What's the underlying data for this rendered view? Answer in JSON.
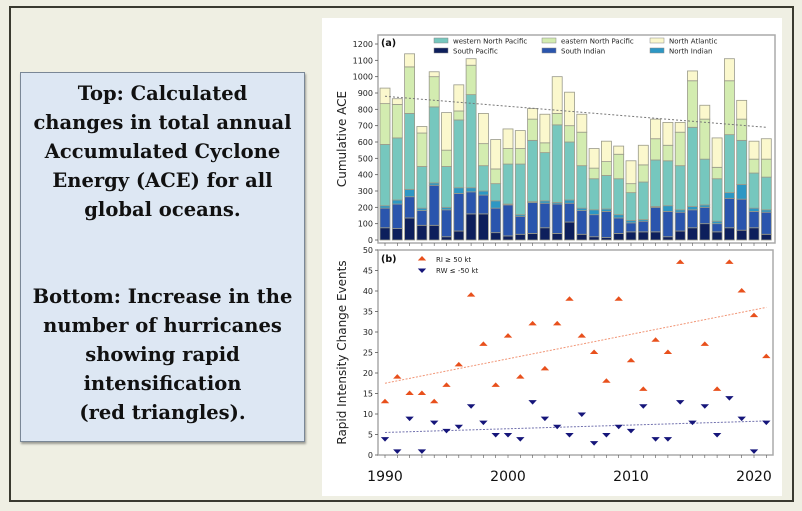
{
  "caption": {
    "top_lines": [
      "Top: Calculated",
      "changes in total annual",
      "Accumulated Cyclone",
      "Energy (ACE) for all",
      "global oceans."
    ],
    "bottom_lines": [
      "Bottom: Increase in the",
      "number of hurricanes",
      "showing rapid",
      "intensification",
      "(red triangles)."
    ]
  },
  "chart_data": [
    {
      "type": "bar",
      "stacked": true,
      "panel_label": "(a)",
      "title": "",
      "xlabel": "",
      "ylabel": "Cumulative ACE",
      "ylim": [
        0,
        1250
      ],
      "yticks": [
        0,
        100,
        200,
        300,
        400,
        500,
        600,
        700,
        800,
        900,
        1000,
        1100,
        1200
      ],
      "grid": false,
      "legend_position": "top",
      "categories": [
        1990,
        1991,
        1992,
        1993,
        1994,
        1995,
        1996,
        1997,
        1998,
        1999,
        2000,
        2001,
        2002,
        2003,
        2004,
        2005,
        2006,
        2007,
        2008,
        2009,
        2010,
        2011,
        2012,
        2013,
        2014,
        2015,
        2016,
        2017,
        2018,
        2019,
        2020,
        2021
      ],
      "series": [
        {
          "name": "South Pacific",
          "color": "#0d1f5c",
          "values": [
            75,
            70,
            135,
            90,
            90,
            20,
            55,
            160,
            160,
            45,
            25,
            35,
            40,
            75,
            40,
            110,
            35,
            20,
            15,
            40,
            50,
            50,
            50,
            20,
            55,
            75,
            100,
            50,
            75,
            60,
            75,
            35
          ]
        },
        {
          "name": "South Indian",
          "color": "#2a55ad",
          "values": [
            120,
            150,
            130,
            90,
            245,
            165,
            230,
            135,
            115,
            150,
            190,
            110,
            190,
            150,
            180,
            115,
            145,
            135,
            160,
            95,
            55,
            65,
            150,
            155,
            115,
            110,
            100,
            50,
            180,
            190,
            100,
            135
          ]
        },
        {
          "name": "North Indian",
          "color": "#2d97c4",
          "values": [
            15,
            25,
            45,
            15,
            15,
            15,
            35,
            25,
            25,
            45,
            5,
            10,
            5,
            15,
            10,
            20,
            15,
            30,
            15,
            20,
            15,
            10,
            5,
            35,
            15,
            20,
            15,
            15,
            35,
            90,
            20,
            15
          ]
        },
        {
          "name": "western North Pacific",
          "color": "#76c7be",
          "values": [
            375,
            380,
            465,
            255,
            465,
            250,
            415,
            570,
            155,
            105,
            245,
            310,
            375,
            295,
            475,
            355,
            260,
            190,
            205,
            220,
            170,
            230,
            285,
            275,
            270,
            485,
            280,
            260,
            355,
            270,
            215,
            200
          ]
        },
        {
          "name": "eastern North Pacific",
          "color": "#d3ecb0",
          "values": [
            250,
            205,
            285,
            205,
            185,
            100,
            55,
            180,
            135,
            90,
            95,
            95,
            130,
            60,
            70,
            100,
            205,
            65,
            85,
            150,
            55,
            105,
            130,
            95,
            205,
            285,
            245,
            70,
            330,
            130,
            85,
            110
          ]
        },
        {
          "name": "North Atlantic",
          "color": "#fbf8cd",
          "values": [
            95,
            35,
            80,
            40,
            30,
            230,
            160,
            40,
            185,
            180,
            120,
            110,
            65,
            175,
            225,
            205,
            110,
            120,
            125,
            50,
            140,
            120,
            120,
            140,
            60,
            60,
            85,
            180,
            135,
            115,
            110,
            125
          ]
        }
      ],
      "trend_line": {
        "style": "dashed",
        "color": "#777777",
        "start": [
          1990,
          880
        ],
        "end": [
          2021,
          690
        ]
      }
    },
    {
      "type": "scatter",
      "panel_label": "(b)",
      "title": "",
      "xlabel": "",
      "ylabel": "Rapid Intensity Change Events",
      "ylim": [
        0,
        50
      ],
      "xlim": [
        1989.3,
        2022
      ],
      "yticks": [
        0,
        5,
        10,
        15,
        20,
        25,
        30,
        35,
        40,
        45,
        50
      ],
      "xticks": [
        1990,
        2000,
        2010,
        2020
      ],
      "grid": false,
      "legend_position": "top-left",
      "x": [
        1990,
        1991,
        1992,
        1993,
        1994,
        1995,
        1996,
        1997,
        1998,
        1999,
        2000,
        2001,
        2002,
        2003,
        2004,
        2005,
        2006,
        2007,
        2008,
        2009,
        2010,
        2011,
        2012,
        2013,
        2014,
        2015,
        2016,
        2017,
        2018,
        2019,
        2020,
        2021
      ],
      "series": [
        {
          "name": "RI ≥ 50 kt",
          "marker": "triangle-up",
          "color": "#e8501c",
          "values": [
            13,
            19,
            15,
            15,
            13,
            17,
            22,
            39,
            27,
            17,
            29,
            19,
            32,
            21,
            32,
            38,
            29,
            25,
            18,
            38,
            23,
            16,
            28,
            25,
            47,
            null,
            27,
            16,
            47,
            40,
            34,
            24
          ],
          "trend_line": {
            "start": [
              1990,
              17.5
            ],
            "end": [
              2021,
              36
            ]
          }
        },
        {
          "name": "RW ≤ -50 kt",
          "marker": "triangle-down",
          "color": "#15157a",
          "values": [
            4,
            1,
            9,
            1,
            8,
            6,
            7,
            12,
            8,
            5,
            5,
            4,
            13,
            9,
            7,
            5,
            10,
            3,
            5,
            7,
            6,
            12,
            4,
            4,
            13,
            8,
            12,
            5,
            14,
            9,
            1,
            8
          ],
          "trend_line": {
            "start": [
              1990,
              5.5
            ],
            "end": [
              2021,
              8.3
            ]
          }
        }
      ]
    }
  ]
}
